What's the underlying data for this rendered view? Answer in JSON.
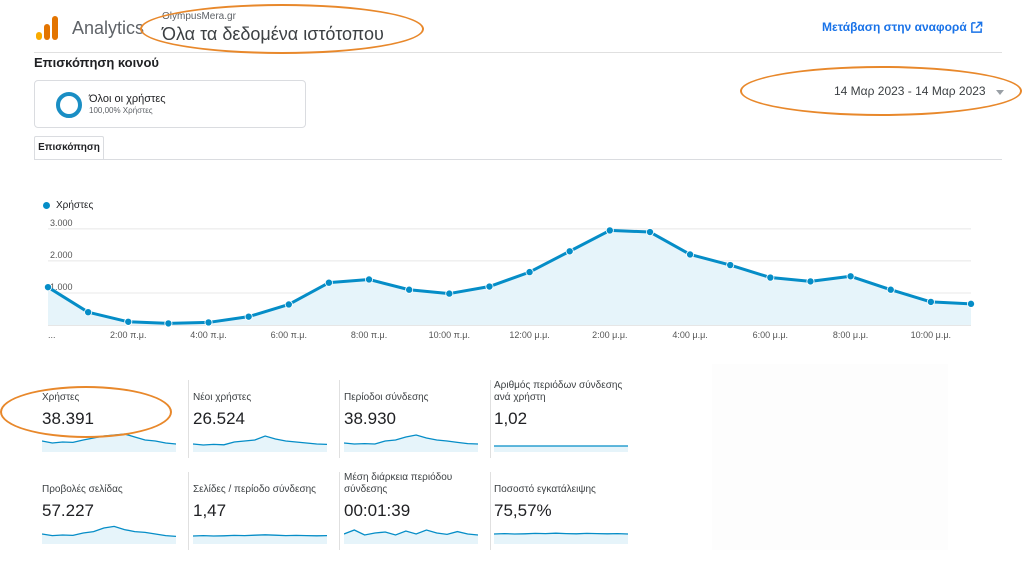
{
  "header": {
    "app_name": "Analytics",
    "property": "OlympusMera.gr",
    "view": "Όλα τα δεδομένα ιστότοπου",
    "report_link": "Μετάβαση στην αναφορά",
    "report_link_icon": "external-link-icon"
  },
  "section_title": "Επισκόπηση κοινού",
  "segment": {
    "name": "Όλοι οι χρήστες",
    "percentage": "100,00% Χρήστες"
  },
  "date_range": "14 Μαρ 2023 - 14 Μαρ 2023",
  "tab": "Επισκόπηση",
  "colors": {
    "series": "#058DC7",
    "area": "#E6F4FA",
    "annotation": "#E8882B",
    "link": "#1a73e8"
  },
  "chart_data": {
    "type": "line",
    "series": [
      {
        "name": "Χρήστες",
        "values": [
          1180,
          400,
          100,
          50,
          80,
          260,
          640,
          1320,
          1420,
          1100,
          980,
          1200,
          1650,
          2300,
          2950,
          2900,
          2200,
          1870,
          1480,
          1360,
          1520,
          1100,
          720,
          660
        ]
      }
    ],
    "x_ticks": [
      "...",
      "2:00 π.μ.",
      "4:00 π.μ.",
      "6:00 π.μ.",
      "8:00 π.μ.",
      "10:00 π.μ.",
      "12:00 μ.μ.",
      "2:00 μ.μ.",
      "4:00 μ.μ.",
      "6:00 μ.μ.",
      "8:00 μ.μ.",
      "10:00 μ.μ."
    ],
    "y_ticks": [
      "3.000",
      "2.000",
      "1.000"
    ],
    "ylim": [
      0,
      3400
    ],
    "grid": true,
    "legend": "top-left"
  },
  "metrics": [
    {
      "label": "Χρήστες",
      "value": "38.391",
      "spark": [
        0.55,
        0.45,
        0.5,
        0.48,
        0.6,
        0.7,
        0.8,
        0.85,
        0.9,
        0.75,
        0.6,
        0.55,
        0.45,
        0.4
      ]
    },
    {
      "label": "Νέοι χρήστες",
      "value": "26.524",
      "spark": [
        0.4,
        0.35,
        0.38,
        0.36,
        0.5,
        0.55,
        0.6,
        0.8,
        0.65,
        0.55,
        0.5,
        0.45,
        0.4,
        0.38
      ]
    },
    {
      "label": "Περίοδοι σύνδεσης",
      "value": "38.930",
      "spark": [
        0.45,
        0.4,
        0.42,
        0.4,
        0.55,
        0.6,
        0.75,
        0.85,
        0.7,
        0.6,
        0.55,
        0.48,
        0.42,
        0.4
      ]
    },
    {
      "label": "Αριθμός περιόδων σύνδεσης ανά χρήστη",
      "value": "1,02",
      "spark": [
        0.3,
        0.3,
        0.3,
        0.3,
        0.3,
        0.3,
        0.3,
        0.3,
        0.3,
        0.3,
        0.3,
        0.3,
        0.3,
        0.3
      ]
    },
    {
      "label": "Προβολές σελίδας",
      "value": "57.227",
      "spark": [
        0.5,
        0.42,
        0.45,
        0.43,
        0.55,
        0.62,
        0.8,
        0.88,
        0.72,
        0.62,
        0.58,
        0.5,
        0.42,
        0.38
      ]
    },
    {
      "label": "Σελίδες / περίοδο σύνδεσης",
      "value": "1,47",
      "spark": [
        0.4,
        0.42,
        0.4,
        0.41,
        0.43,
        0.42,
        0.44,
        0.46,
        0.44,
        0.42,
        0.43,
        0.42,
        0.41,
        0.42
      ]
    },
    {
      "label": "Μέση διάρκεια περιόδου σύνδεσης",
      "value": "00:01:39",
      "spark": [
        0.5,
        0.7,
        0.45,
        0.55,
        0.6,
        0.45,
        0.65,
        0.5,
        0.7,
        0.55,
        0.48,
        0.62,
        0.5,
        0.45
      ]
    },
    {
      "label": "Ποσοστό εγκατάλειψης",
      "value": "75,57%",
      "spark": [
        0.5,
        0.52,
        0.5,
        0.51,
        0.53,
        0.52,
        0.54,
        0.52,
        0.51,
        0.53,
        0.52,
        0.51,
        0.52,
        0.5
      ]
    }
  ]
}
